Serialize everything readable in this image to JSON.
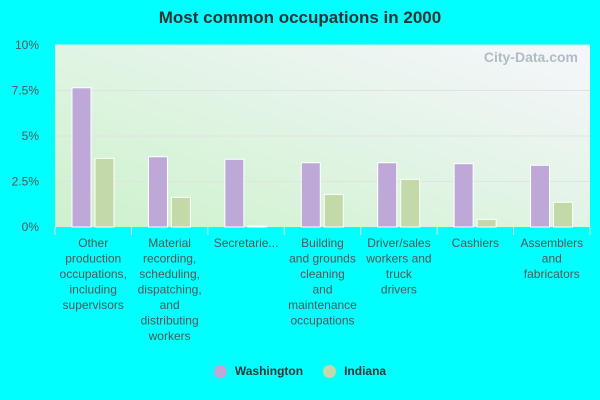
{
  "chart_data": {
    "type": "bar",
    "title": "Most common occupations in 2000",
    "categories": [
      "Other production occupations, including supervisors",
      "Material recording, scheduling, dispatching, and distributing workers",
      "Secretarie...",
      "Building and grounds cleaning and maintenance occupations",
      "Driver/sales workers and truck drivers",
      "Cashiers",
      "Assemblers and fabricators"
    ],
    "series": [
      {
        "name": "Washington",
        "color": "#bea8d8",
        "values": [
          7.65,
          3.86,
          3.72,
          3.53,
          3.53,
          3.48,
          3.39
        ]
      },
      {
        "name": "Indiana",
        "color": "#c4d9a8",
        "values": [
          3.77,
          1.63,
          0.05,
          1.79,
          2.62,
          0.42,
          1.36
        ]
      }
    ],
    "ylim": [
      0,
      10
    ],
    "yticks": [
      "0%",
      "2.5%",
      "5%",
      "7.5%",
      "10%"
    ],
    "grid": true,
    "legend": "bottom",
    "watermark": "City-Data.com"
  }
}
